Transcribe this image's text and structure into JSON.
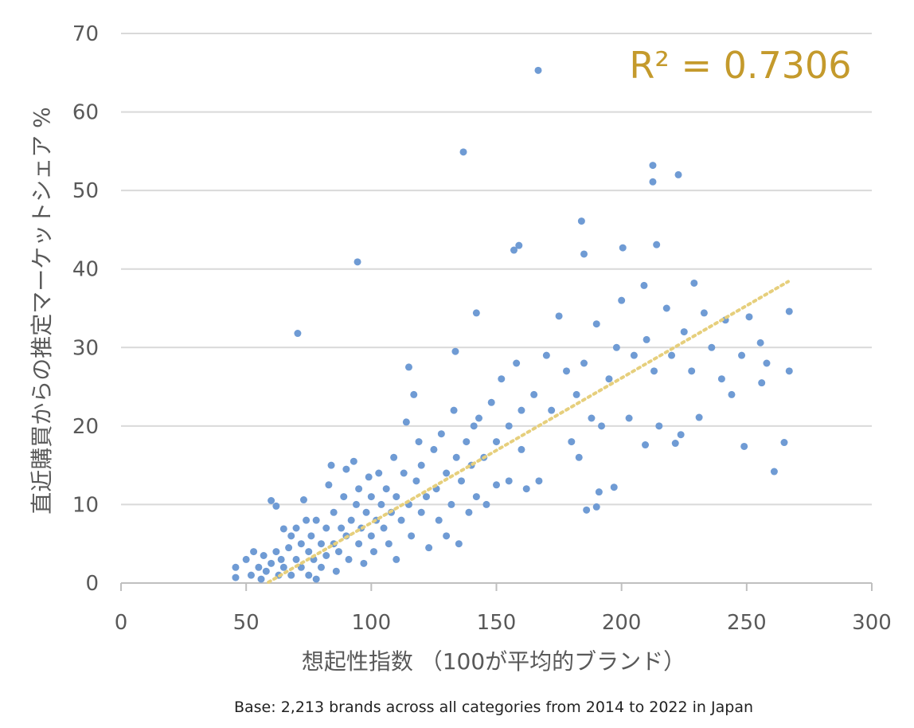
{
  "chart_data": {
    "type": "scatter",
    "x_label": "想起性指数 （100が平均的ブランド）",
    "y_label": "直近購買からの推定マーケットシェア %",
    "annotation": "R² = 0.7306",
    "footnote": "Base: 2,213 brands across all categories from 2014 to 2022 in Japan",
    "xlim": [
      0,
      300
    ],
    "xticks": [
      0,
      50,
      100,
      150,
      200,
      250,
      300
    ],
    "ylim": [
      0,
      70
    ],
    "yticks": [
      0,
      10,
      20,
      30,
      40,
      50,
      60,
      70
    ],
    "grid": true,
    "series": [
      {
        "color": "#6f9bd4",
        "x": [
          166.7,
          136.8,
          94.5,
          70.6,
          212.5,
          212.5,
          222.7,
          184,
          214,
          159,
          157,
          200.5,
          185,
          142,
          267,
          229,
          209,
          267,
          265,
          261,
          249,
          186,
          190,
          197,
          191,
          133.6,
          115,
          255.5,
          251,
          241.5,
          233,
          231,
          223.7,
          221.5,
          209.5,
          45.8,
          45.8,
          50,
          52,
          53,
          55,
          56,
          57,
          58,
          60,
          60,
          62,
          62,
          63,
          64,
          65,
          65,
          67,
          68,
          68,
          70,
          70,
          72,
          72,
          73,
          74,
          75,
          75,
          76,
          77,
          78,
          78,
          80,
          80,
          82,
          82,
          83,
          84,
          85,
          85,
          86,
          87,
          88,
          89,
          90,
          90,
          91,
          92,
          93,
          94,
          95,
          95,
          96,
          97,
          98,
          99,
          100,
          100,
          101,
          102,
          103,
          104,
          105,
          106,
          107,
          108,
          109,
          110,
          110,
          112,
          113,
          114,
          115,
          116,
          117,
          118,
          119,
          120,
          120,
          122,
          123,
          125,
          126,
          127,
          128,
          130,
          130,
          132,
          133,
          134,
          135,
          136,
          138,
          139,
          140,
          141,
          142,
          143,
          145,
          146,
          148,
          150,
          150,
          152,
          155,
          155,
          158,
          160,
          160,
          162,
          165,
          167,
          170,
          172,
          175,
          178,
          180,
          182,
          183,
          185,
          188,
          190,
          192,
          195,
          198,
          200,
          203,
          205,
          210,
          213,
          215,
          218,
          220,
          225,
          228,
          236,
          240,
          244,
          248,
          256,
          258
        ],
        "y": [
          65.3,
          54.9,
          40.9,
          31.8,
          53.2,
          51.1,
          52,
          46.1,
          43.1,
          43,
          42.4,
          42.7,
          41.9,
          34.4,
          34.6,
          38.2,
          37.9,
          27,
          17.9,
          14.2,
          17.4,
          9.3,
          9.7,
          12.2,
          11.6,
          29.5,
          27.5,
          30.6,
          33.9,
          33.5,
          34.4,
          21.1,
          18.9,
          17.8,
          17.6,
          2,
          0.7,
          3,
          1,
          4,
          2,
          0.5,
          3.5,
          1.5,
          2.5,
          10.5,
          9.8,
          4,
          1,
          3,
          6.9,
          2,
          4.5,
          1,
          6,
          3,
          7,
          2,
          5,
          10.6,
          8,
          4,
          1,
          6,
          3,
          0.5,
          8,
          5,
          2,
          7,
          3.5,
          12.5,
          15,
          9,
          5,
          1.5,
          4,
          7,
          11,
          6,
          14.5,
          3,
          8,
          15.5,
          10,
          5,
          12,
          7,
          2.5,
          9,
          13.5,
          6,
          11,
          4,
          8,
          14,
          10,
          7,
          12,
          5,
          9,
          16,
          11,
          3,
          8,
          14,
          20.5,
          10,
          6,
          24,
          13,
          18,
          9,
          15,
          11,
          4.5,
          17,
          12,
          8,
          19,
          14,
          6,
          10,
          22,
          16,
          5,
          13,
          18,
          9,
          15,
          20,
          11,
          21,
          16,
          10,
          23,
          18,
          12.5,
          26,
          20,
          13,
          28,
          22,
          17,
          12,
          24,
          13,
          29,
          22,
          34,
          27,
          18,
          24,
          16,
          28,
          21,
          33,
          20,
          26,
          30,
          36,
          21,
          29,
          31,
          27,
          20,
          35,
          29,
          32,
          27,
          30,
          26,
          24,
          29,
          25.5,
          28
        ]
      }
    ],
    "trendline": {
      "x": [
        58.9,
        266.6
      ],
      "y": [
        0.1,
        38.4
      ],
      "color": "#e6cf7c"
    }
  }
}
